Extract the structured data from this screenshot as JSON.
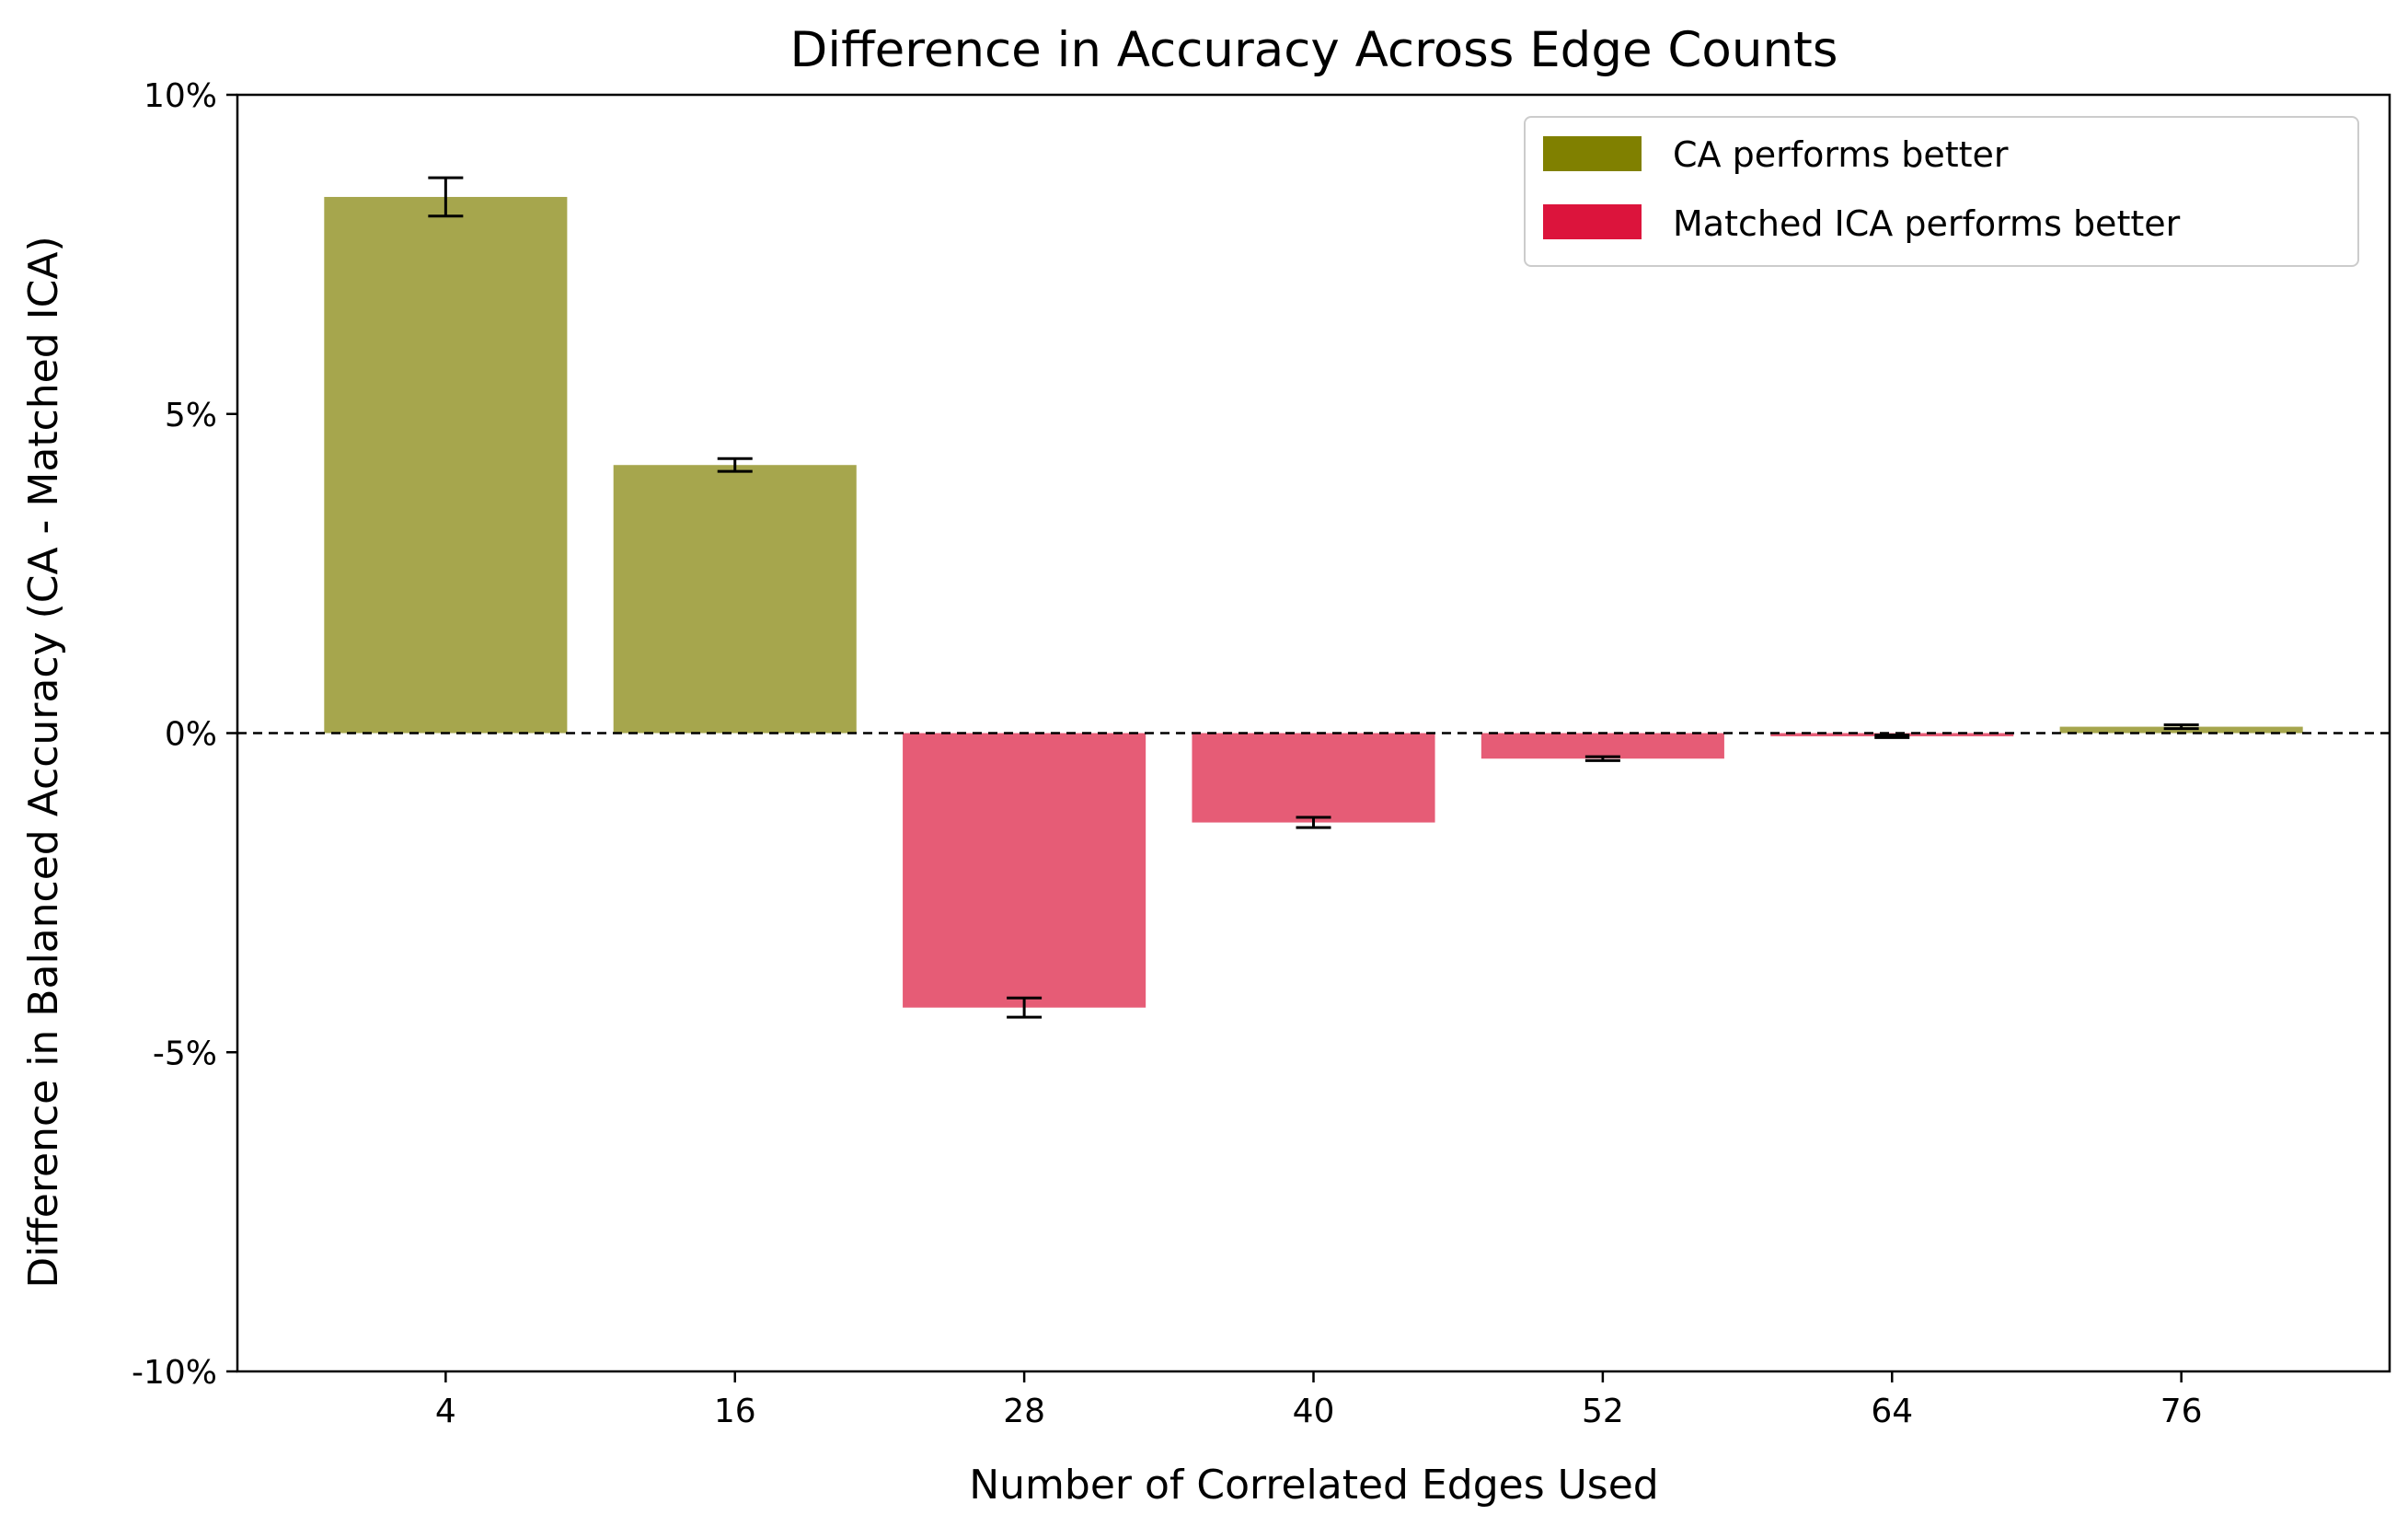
{
  "chart_data": {
    "type": "bar",
    "title": "Difference in Accuracy Across Edge Counts",
    "xlabel": "Number of Correlated Edges Used",
    "ylabel": "Difference in Balanced Accuracy (CA - Matched ICA)",
    "categories": [
      "4",
      "16",
      "28",
      "40",
      "52",
      "64",
      "76"
    ],
    "values": [
      8.4,
      4.2,
      -4.3,
      -1.4,
      -0.4,
      -0.05,
      0.1
    ],
    "errors": [
      0.3,
      0.1,
      0.15,
      0.08,
      0.03,
      0.02,
      0.03
    ],
    "ylim": [
      -10,
      10
    ],
    "yticks": [
      10,
      5,
      0,
      -5,
      -10
    ],
    "ytick_labels": [
      "10%",
      "5%",
      "0%",
      "-5%",
      "-10%"
    ],
    "zero_line": "dashed",
    "grid": false,
    "legend_position": "top-right",
    "legend": [
      {
        "label": "CA performs better",
        "color": "#808000"
      },
      {
        "label": "Matched ICA performs better",
        "color": "#DC143C"
      }
    ],
    "colors": {
      "positive_bar": "#a6a64d",
      "negative_bar": "#e65c76"
    }
  }
}
